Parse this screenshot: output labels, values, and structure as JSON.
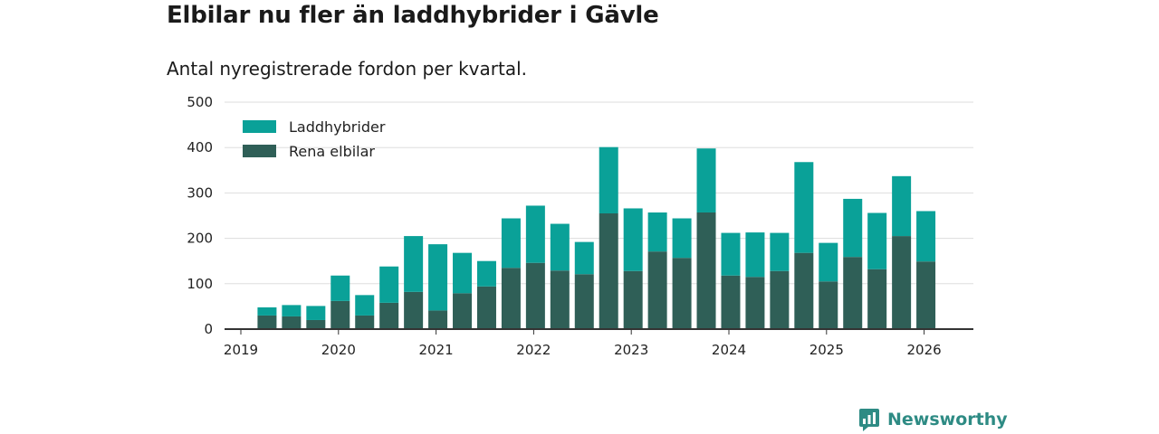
{
  "title": "Elbilar nu fler än laddhybrider i Gävle",
  "subtitle": "Antal nyregistrerade fordon per kvartal.",
  "brand": {
    "name": "Newsworthy",
    "icon": "newsworthy-logo-icon"
  },
  "colors": {
    "laddhybrider": "#0aa198",
    "rena_elbilar": "#2f5f57",
    "grid": "#dddddd",
    "axis": "#333333",
    "brand": "#2e8b84"
  },
  "chart_data": {
    "type": "bar",
    "stacked": true,
    "title": "Elbilar nu fler än laddhybrider i Gävle",
    "subtitle": "Antal nyregistrerade fordon per kvartal.",
    "xlabel": "",
    "ylabel": "",
    "ylim": [
      0,
      500
    ],
    "yticks": [
      "0",
      "100",
      "200",
      "300",
      "400",
      "500"
    ],
    "xticks": [
      "2019",
      "2020",
      "2021",
      "2022",
      "2023",
      "2024",
      "2025",
      "2026"
    ],
    "grid": true,
    "legend_position": "top-left",
    "categories": [
      "2019 Q2",
      "2019 Q3",
      "2019 Q4",
      "2020 Q1",
      "2020 Q2",
      "2020 Q3",
      "2020 Q4",
      "2021 Q1",
      "2021 Q2",
      "2021 Q3",
      "2021 Q4",
      "2022 Q1",
      "2022 Q2",
      "2022 Q3",
      "2022 Q4",
      "2023 Q1",
      "2023 Q2",
      "2023 Q3",
      "2023 Q4",
      "2024 Q1",
      "2024 Q2",
      "2024 Q3",
      "2024 Q4",
      "2025 Q1",
      "2025 Q2",
      "2025 Q3",
      "2025 Q4",
      "2026 Q1"
    ],
    "series": [
      {
        "name": "Laddhybrider",
        "values": [
          18,
          25,
          31,
          56,
          45,
          80,
          123,
          146,
          89,
          56,
          109,
          126,
          103,
          71,
          146,
          138,
          86,
          87,
          141,
          94,
          98,
          84,
          200,
          85,
          128,
          124,
          132,
          111
        ]
      },
      {
        "name": "Rena elbilar",
        "values": [
          30,
          28,
          20,
          62,
          30,
          58,
          82,
          41,
          79,
          94,
          135,
          146,
          129,
          121,
          255,
          128,
          171,
          157,
          257,
          118,
          115,
          128,
          168,
          105,
          159,
          132,
          205,
          149
        ]
      }
    ]
  }
}
